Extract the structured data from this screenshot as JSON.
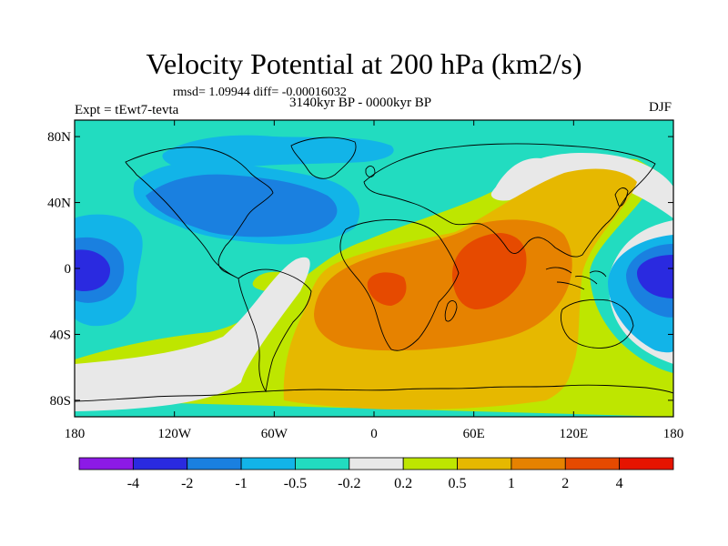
{
  "title": "Velocity Potential at 200 hPa (km2/s)",
  "stats": "rmsd= 1.09944 diff= -0.00016032",
  "expt": "Expt = tEwt7-tevta",
  "period": "3140kyr BP - 0000kyr BP",
  "season": "DJF",
  "chart_data": {
    "type": "heatmap",
    "title": "Velocity Potential at 200 hPa (km2/s)",
    "units": "km2/s",
    "projection": "cylindrical equidistant, global",
    "x_axis": {
      "range": [
        -180,
        180
      ],
      "ticks": [
        -180,
        -120,
        -60,
        0,
        60,
        120,
        180
      ],
      "tick_labels": [
        "180",
        "120W",
        "60W",
        "0",
        "60E",
        "120E",
        "180"
      ]
    },
    "y_axis": {
      "range": [
        -90,
        90
      ],
      "ticks": [
        80,
        40,
        0,
        -40,
        -80
      ],
      "tick_labels": [
        "80N",
        "40N",
        "0",
        "40S",
        "80S"
      ]
    },
    "colorbar": {
      "levels": [
        -4,
        -2,
        -1,
        -0.5,
        -0.2,
        0.2,
        0.5,
        1,
        2,
        4
      ],
      "labels": [
        "-4",
        "-2",
        "-1",
        "-0.5",
        "-0.2",
        "0.2",
        "0.5",
        "1",
        "2",
        "4"
      ],
      "colors": [
        "#8c1ae6",
        "#2a2ae0",
        "#1a80e0",
        "#12b4e8",
        "#22dcc0",
        "#e8e8e8",
        "#bee600",
        "#e6b800",
        "#e68200",
        "#e64a00",
        "#e61400"
      ]
    },
    "features": [
      {
        "name": "western-pacific-negative-core",
        "value": -2,
        "lon": -165,
        "lat": 0
      },
      {
        "name": "eastern-hemisphere-negative-core",
        "value": -2,
        "lon": 165,
        "lat": 0
      },
      {
        "name": "north-atlantic-negative",
        "value": -1,
        "lon": -70,
        "lat": 40
      },
      {
        "name": "africa-indian-ocean-positive-max",
        "value": 2,
        "lon": 55,
        "lat": -5
      },
      {
        "name": "south-atlantic-positive",
        "value": 1,
        "lon": 10,
        "lat": -35
      }
    ]
  }
}
